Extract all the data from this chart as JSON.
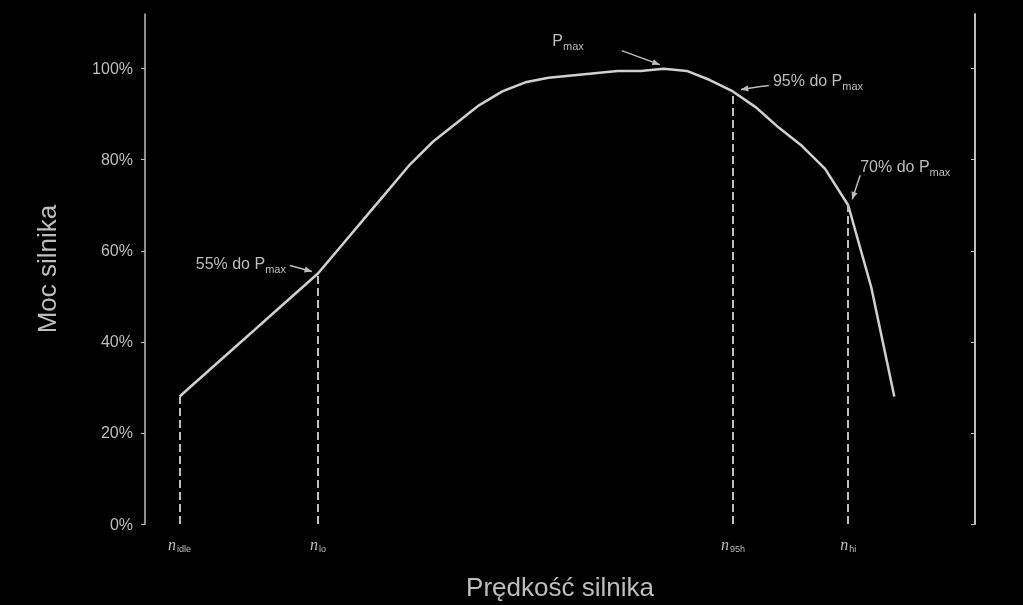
{
  "chart_data": {
    "type": "line",
    "xlabel": "Prędkość silnika",
    "ylabel": "Moc silnika",
    "categories": [
      null,
      "n$_{idle}$",
      null,
      null,
      null,
      null,
      null,
      "n$_{lo}$",
      null,
      null,
      null,
      null,
      null,
      null,
      null,
      null,
      null,
      null,
      null,
      null,
      null,
      null,
      null,
      null,
      null,
      "n$_{95h}$",
      null,
      null,
      null,
      null,
      "n$_{hi}$",
      null,
      null,
      null,
      null,
      null
    ],
    "series": [
      {
        "color": "#d0d0d0",
        "values": [
          null,
          28,
          32.5,
          37,
          41.5,
          46,
          50.5,
          55,
          61,
          67,
          73,
          79,
          84,
          88,
          92,
          95,
          97,
          98,
          98.5,
          99,
          99.5,
          99.5,
          100,
          99.5,
          97.5,
          95,
          91.5,
          87,
          83,
          78,
          70,
          52,
          28,
          null,
          null,
          null
        ]
      }
    ],
    "ylim": [
      0,
      112
    ],
    "yticks": [
      {
        "value": 0,
        "label": "0%"
      },
      {
        "value": 20,
        "label": "20%"
      },
      {
        "value": 40,
        "label": "40%"
      },
      {
        "value": 60,
        "label": "60%"
      },
      {
        "value": 80,
        "label": "80%"
      },
      {
        "value": 100,
        "label": "100%"
      }
    ],
    "ref_lines": [
      {
        "axis": "x",
        "value": "n$_{idle}$",
        "line_style": "dashed"
      },
      {
        "axis": "x",
        "value": "n$_{lo}$",
        "line_style": "dashed"
      },
      {
        "axis": "x",
        "value": "n$_{95h}$",
        "line_style": "dashed"
      },
      {
        "axis": "x",
        "value": "n$_{hi}$",
        "line_style": "dashed"
      }
    ],
    "annotations": [
      "P$_{max}$",
      {
        "text": "95% do P$_{max}$",
        "x": "n$_{95h}$",
        "y": 95
      },
      {
        "text": "70% do P$_{max}$",
        "x": "n$_{hi}$",
        "y": 70
      },
      {
        "text": "55% do P$_{max}$",
        "x": "n$_{lo}$",
        "y": 55
      }
    ],
    "grid": false,
    "marker": "none",
    "line_style": "solid"
  }
}
